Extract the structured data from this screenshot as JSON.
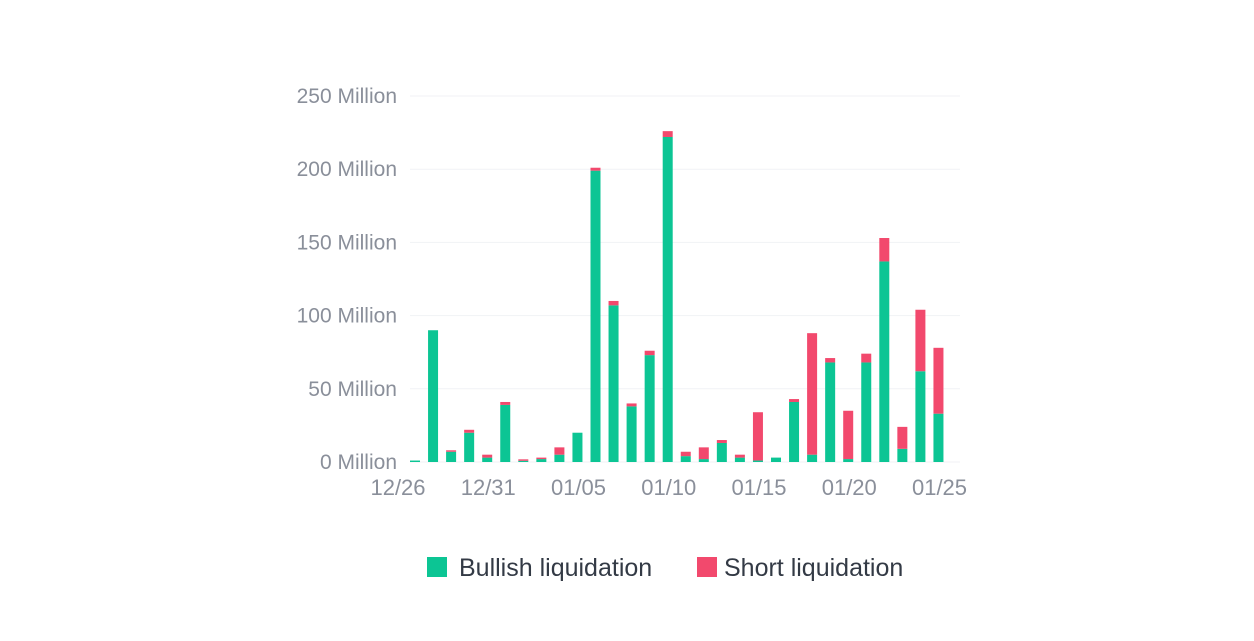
{
  "chart_data": {
    "type": "bar",
    "stacked": true,
    "categories": [
      "12/26",
      "12/27",
      "12/28",
      "12/29",
      "12/30",
      "12/31",
      "01/01",
      "01/02",
      "01/03",
      "01/04",
      "01/05",
      "01/06",
      "01/07",
      "01/08",
      "01/09",
      "01/10",
      "01/11",
      "01/12",
      "01/13",
      "01/14",
      "01/15",
      "01/16",
      "01/17",
      "01/18",
      "01/19",
      "01/20",
      "01/21",
      "01/22",
      "01/23",
      "01/24",
      "01/25"
    ],
    "tick_labels": [
      "12/26",
      "12/31",
      "01/05",
      "01/10",
      "01/15",
      "01/20",
      "01/25"
    ],
    "series": [
      {
        "name": "Bullish liquidation",
        "color": "#0cc594",
        "values": [
          1,
          90,
          7,
          20,
          3,
          39,
          0.5,
          2,
          5,
          20,
          199,
          107,
          38,
          73,
          222,
          4,
          2,
          13,
          3,
          1,
          3,
          41,
          5,
          68,
          2,
          68,
          137,
          9,
          62,
          33,
          0
        ]
      },
      {
        "name": "Short liquidation",
        "color": "#f2496d",
        "values": [
          0,
          0,
          1,
          2,
          2,
          2,
          1,
          1,
          5,
          0,
          2,
          3,
          2,
          3,
          4,
          3,
          8,
          2,
          2,
          33,
          0,
          2,
          83,
          3,
          33,
          6,
          16,
          15,
          42,
          45,
          0
        ]
      }
    ],
    "yticks": [
      "250 Million",
      "200 Million",
      "150 Million",
      "100 Million",
      "50 Million",
      "0 Million"
    ],
    "ylim": [
      0,
      250
    ],
    "grid": true,
    "legend_position": "bottom-center"
  }
}
